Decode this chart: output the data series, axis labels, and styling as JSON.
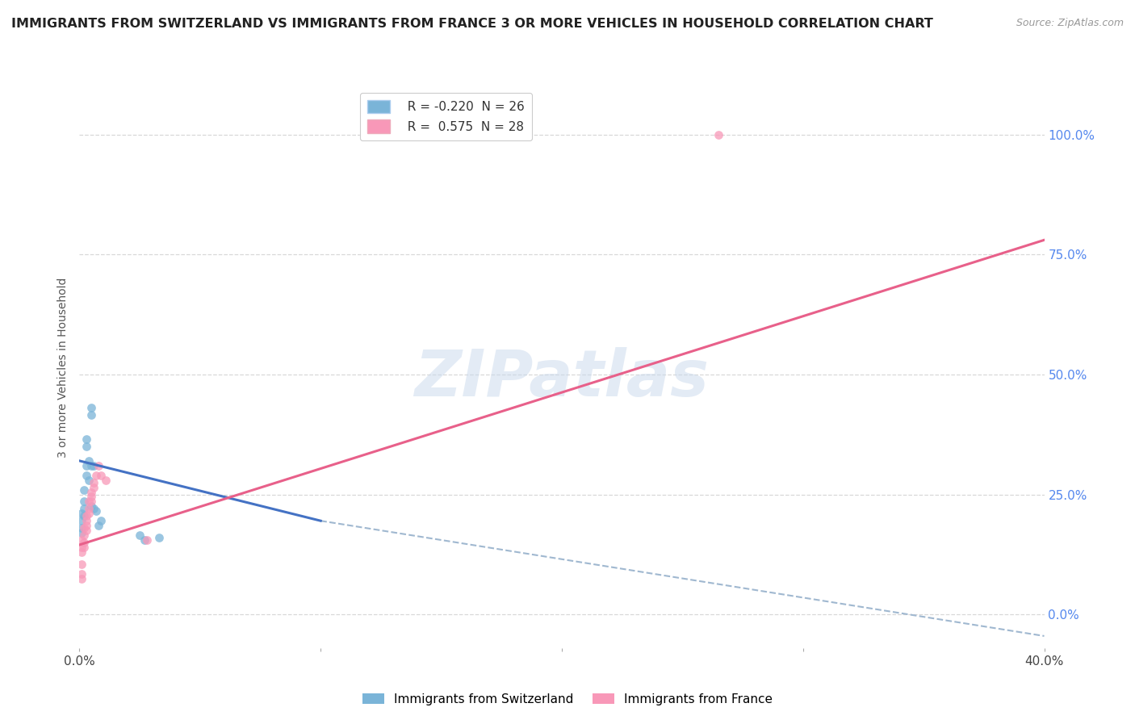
{
  "title": "IMMIGRANTS FROM SWITZERLAND VS IMMIGRANTS FROM FRANCE 3 OR MORE VEHICLES IN HOUSEHOLD CORRELATION CHART",
  "source": "Source: ZipAtlas.com",
  "ylabel": "3 or more Vehicles in Household",
  "watermark": "ZIPatlas",
  "switzerland_scatter": [
    [
      0.001,
      0.21
    ],
    [
      0.001,
      0.195
    ],
    [
      0.001,
      0.18
    ],
    [
      0.001,
      0.17
    ],
    [
      0.002,
      0.26
    ],
    [
      0.002,
      0.235
    ],
    [
      0.002,
      0.22
    ],
    [
      0.002,
      0.205
    ],
    [
      0.003,
      0.365
    ],
    [
      0.003,
      0.35
    ],
    [
      0.003,
      0.31
    ],
    [
      0.003,
      0.29
    ],
    [
      0.004,
      0.32
    ],
    [
      0.004,
      0.28
    ],
    [
      0.005,
      0.43
    ],
    [
      0.005,
      0.415
    ],
    [
      0.005,
      0.31
    ],
    [
      0.005,
      0.225
    ],
    [
      0.006,
      0.31
    ],
    [
      0.006,
      0.22
    ],
    [
      0.007,
      0.215
    ],
    [
      0.008,
      0.185
    ],
    [
      0.009,
      0.195
    ],
    [
      0.025,
      0.165
    ],
    [
      0.027,
      0.155
    ],
    [
      0.033,
      0.16
    ]
  ],
  "france_scatter": [
    [
      0.001,
      0.155
    ],
    [
      0.001,
      0.14
    ],
    [
      0.001,
      0.13
    ],
    [
      0.001,
      0.105
    ],
    [
      0.001,
      0.085
    ],
    [
      0.001,
      0.075
    ],
    [
      0.002,
      0.18
    ],
    [
      0.002,
      0.165
    ],
    [
      0.002,
      0.15
    ],
    [
      0.002,
      0.14
    ],
    [
      0.003,
      0.205
    ],
    [
      0.003,
      0.195
    ],
    [
      0.003,
      0.185
    ],
    [
      0.003,
      0.175
    ],
    [
      0.004,
      0.235
    ],
    [
      0.004,
      0.22
    ],
    [
      0.004,
      0.21
    ],
    [
      0.005,
      0.255
    ],
    [
      0.005,
      0.245
    ],
    [
      0.005,
      0.235
    ],
    [
      0.006,
      0.275
    ],
    [
      0.006,
      0.265
    ],
    [
      0.007,
      0.29
    ],
    [
      0.008,
      0.31
    ],
    [
      0.009,
      0.29
    ],
    [
      0.011,
      0.28
    ],
    [
      0.028,
      0.155
    ],
    [
      0.265,
      1.0
    ]
  ],
  "switzerland_line_solid": [
    [
      0.0,
      0.32
    ],
    [
      0.1,
      0.195
    ]
  ],
  "switzerland_line_dashed": [
    [
      0.1,
      0.195
    ],
    [
      0.4,
      -0.045
    ]
  ],
  "france_line": [
    [
      0.0,
      0.145
    ],
    [
      0.4,
      0.78
    ]
  ],
  "xlim": [
    0.0,
    0.4
  ],
  "ylim": [
    -0.07,
    1.1
  ],
  "yticks": [
    0.0,
    0.25,
    0.5,
    0.75,
    1.0
  ],
  "ytick_labels_right": [
    "0.0%",
    "25.0%",
    "50.0%",
    "75.0%",
    "100.0%"
  ],
  "xticks": [
    0.0,
    0.1,
    0.2,
    0.3,
    0.4
  ],
  "xtick_labels": [
    "0.0%",
    "",
    "",
    "",
    "40.0%"
  ],
  "switzerland_color": "#7ab4d8",
  "france_color": "#f898b8",
  "switzerland_line_color": "#4472c4",
  "france_line_color": "#e8608a",
  "dashed_color": "#a0b8d0",
  "bg_color": "#ffffff",
  "grid_color": "#d8d8d8",
  "legend_sw_label": "R = -0.220  N = 26",
  "legend_fr_label": "R =  0.575  N = 28",
  "bottom_sw_label": "Immigrants from Switzerland",
  "bottom_fr_label": "Immigrants from France"
}
